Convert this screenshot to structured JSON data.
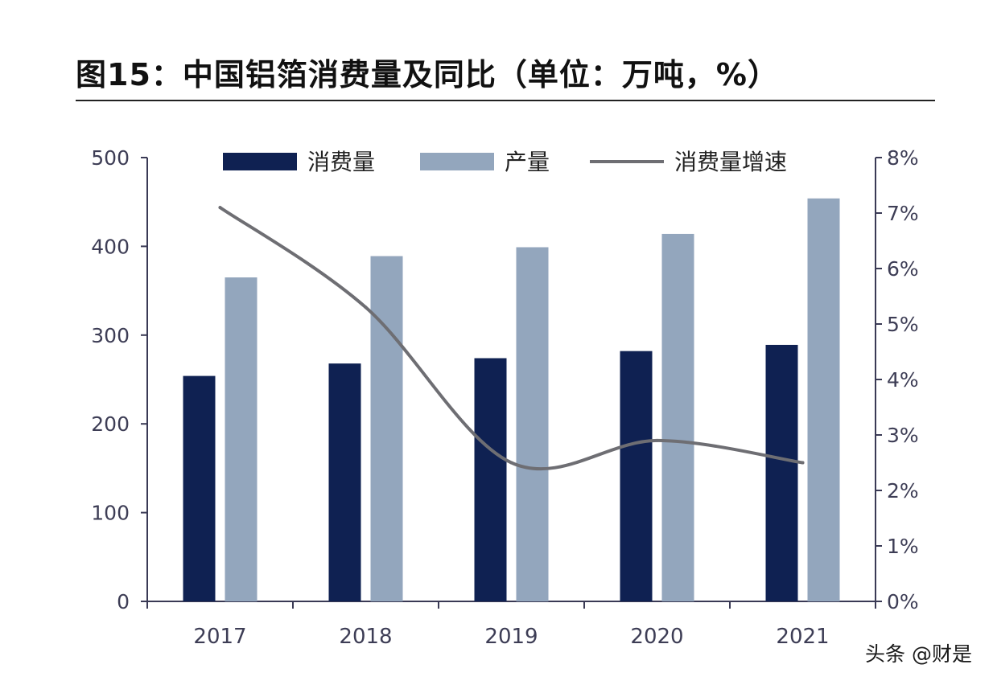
{
  "title": "图15：中国铝箔消费量及同比（单位：万吨，%）",
  "watermark": "头条 @财是",
  "colors": {
    "consumption": "#0f2152",
    "production": "#93a6bd",
    "growth_line": "#6e6e73",
    "axis": "#3a3a55",
    "tick_text": "#3d3d55"
  },
  "chart_data": {
    "type": "bar",
    "categories": [
      "2017",
      "2018",
      "2019",
      "2020",
      "2021"
    ],
    "series": [
      {
        "name": "消费量",
        "kind": "bar",
        "axis": "left",
        "values": [
          254,
          268,
          274,
          282,
          289
        ]
      },
      {
        "name": "产量",
        "kind": "bar",
        "axis": "left",
        "values": [
          365,
          389,
          399,
          414,
          454
        ]
      },
      {
        "name": "消费量增速",
        "kind": "line",
        "axis": "right",
        "values": [
          7.1,
          5.3,
          2.5,
          2.9,
          2.5
        ]
      }
    ],
    "y_left": {
      "min": 0,
      "max": 500,
      "ticks": [
        "0",
        "100",
        "200",
        "300",
        "400",
        "500"
      ]
    },
    "y_right": {
      "min": 0,
      "max": 8,
      "ticks": [
        "0%",
        "1%",
        "2%",
        "3%",
        "4%",
        "5%",
        "6%",
        "7%",
        "8%"
      ]
    },
    "legend": {
      "position": "top-center",
      "entries": [
        "消费量",
        "产量",
        "消费量增速"
      ]
    }
  }
}
